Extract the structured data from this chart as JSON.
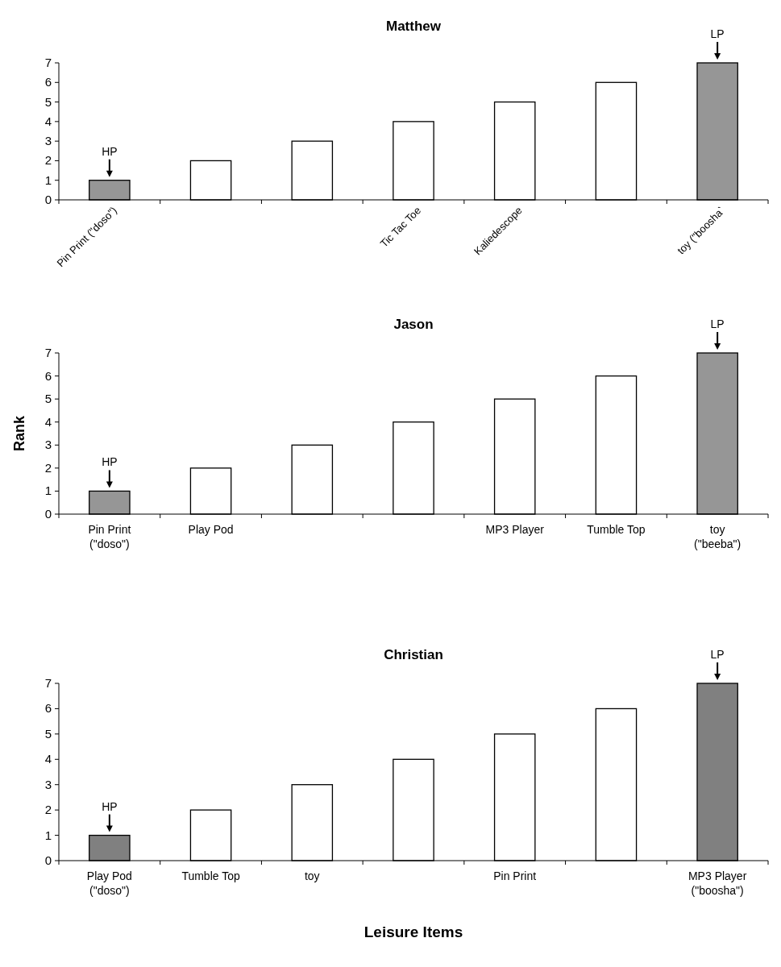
{
  "chart_data": [
    {
      "type": "bar",
      "title": "Matthew",
      "categories": [
        "Pin Print (\"doso\")",
        null,
        null,
        "Tic Tac Toe",
        "Kaliedescope",
        null,
        "toy (\"boosha`"
      ],
      "values": [
        1,
        2,
        3,
        4,
        5,
        6,
        7
      ],
      "colors": [
        "#969696",
        "#ffffff",
        "#ffffff",
        "#ffffff",
        "#ffffff",
        "#ffffff",
        "#969696"
      ],
      "ylim": [
        0,
        7
      ],
      "yticks": [
        0,
        1,
        2,
        3,
        4,
        5,
        6,
        7
      ],
      "annotations": [
        {
          "text": "HP",
          "x": "Pin Print (\"doso\")",
          "y": 1
        },
        {
          "text": "LP",
          "x": "toy (\"boosha`",
          "y": 7
        }
      ]
    },
    {
      "type": "bar",
      "title": "Jason",
      "ylabel": "Rank",
      "categories": [
        "Pin Print (\"doso\")",
        "Play Pod",
        null,
        null,
        "MP3 Player",
        "Tumble Top",
        "toy (\"beeba\")"
      ],
      "values": [
        1,
        2,
        3,
        4,
        5,
        6,
        7
      ],
      "colors": [
        "#969696",
        "#ffffff",
        "#ffffff",
        "#ffffff",
        "#ffffff",
        "#ffffff",
        "#969696"
      ],
      "ylim": [
        0,
        7
      ],
      "yticks": [
        0,
        1,
        2,
        3,
        4,
        5,
        6,
        7
      ],
      "annotations": [
        {
          "text": "HP",
          "x": "Pin Print (\"doso\")",
          "y": 1
        },
        {
          "text": "LP",
          "x": "toy (\"beeba\")",
          "y": 7
        }
      ]
    },
    {
      "type": "bar",
      "title": "Christian",
      "xlabel": "Leisure Items",
      "categories": [
        "Play Pod (\"doso\")",
        "Tumble Top",
        "toy",
        null,
        "Pin Print",
        null,
        "MP3 Player (\"boosha\")"
      ],
      "values": [
        1,
        2,
        3,
        4,
        5,
        6,
        7
      ],
      "colors": [
        "#808080",
        "#ffffff",
        "#ffffff",
        "#ffffff",
        "#ffffff",
        "#ffffff",
        "#808080"
      ],
      "ylim": [
        0,
        7
      ],
      "yticks": [
        0,
        1,
        2,
        3,
        4,
        5,
        6,
        7
      ],
      "annotations": [
        {
          "text": "HP",
          "x": "Play Pod (\"doso\")",
          "y": 1
        },
        {
          "text": "LP",
          "x": "MP3 Player (\"boosha\")",
          "y": 7
        }
      ]
    }
  ]
}
